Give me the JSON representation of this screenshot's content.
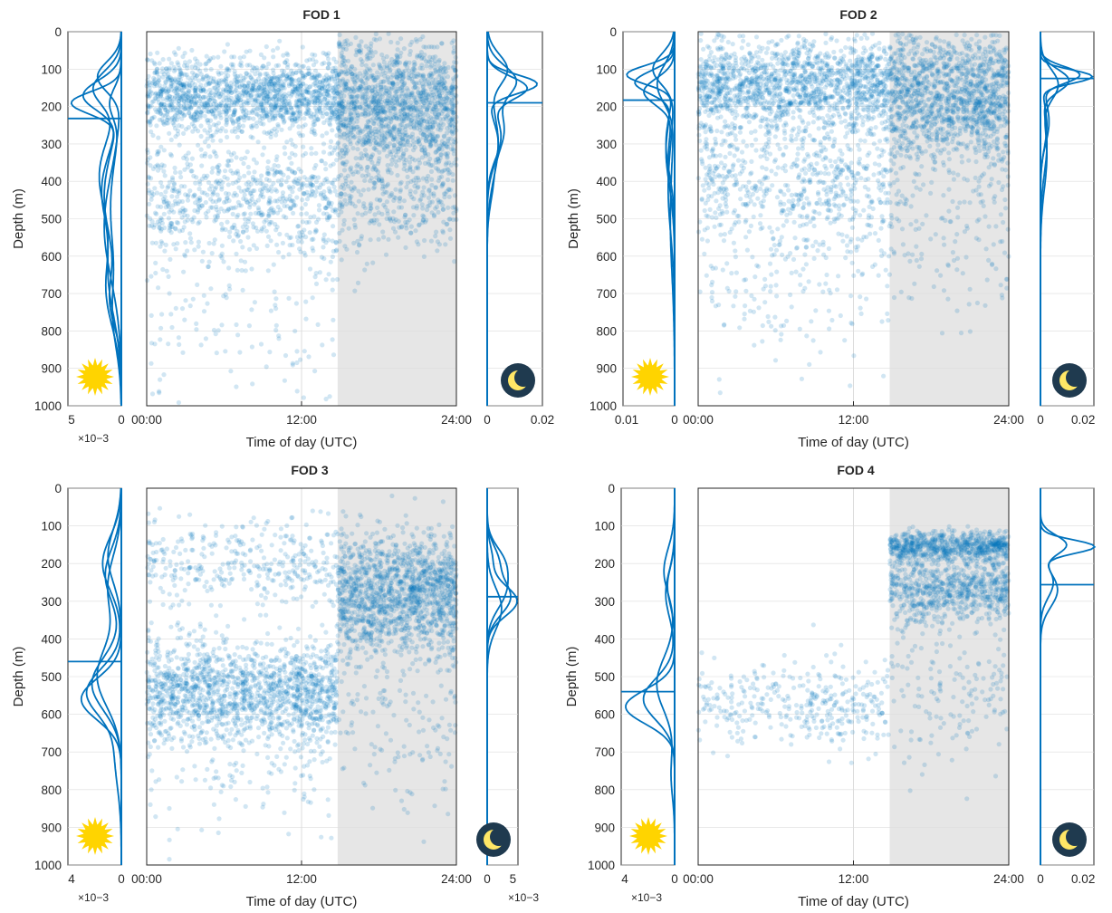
{
  "figure": {
    "colors": {
      "data": "#0072BD",
      "night_shade": "#e6e6e6",
      "grid": "#dcdcdc",
      "sun": "#FFD400",
      "moon_bg": "#1f3a4f",
      "moon": "#FFE766"
    },
    "icons": {
      "day": "sun-icon",
      "night": "moon-icon"
    }
  },
  "chart_data": [
    {
      "type": "scatter",
      "title": "FOD 1",
      "xlabel": "Time of day (UTC)",
      "ylabel": "Depth (m)",
      "xlim": [
        0,
        24
      ],
      "ylim": [
        1000,
        0
      ],
      "y_reversed": true,
      "xticks": [
        "00:00",
        "12:00",
        "24:00"
      ],
      "yticks": [
        "0",
        "100",
        "200",
        "300",
        "400",
        "500",
        "600",
        "700",
        "800",
        "900",
        "1000"
      ],
      "night_shading_start_h": 14.8,
      "scatter_bands": [
        {
          "period": "day",
          "depth_center": 170,
          "depth_spread": 50,
          "density": "very high"
        },
        {
          "period": "day",
          "depth_center": 440,
          "depth_spread": 80,
          "density": "high"
        },
        {
          "period": "day",
          "depth_center": 720,
          "depth_spread": 140,
          "density": "low"
        },
        {
          "period": "night",
          "depth_center": 200,
          "depth_spread": 90,
          "density": "very high"
        },
        {
          "period": "night",
          "depth_center": 430,
          "depth_spread": 90,
          "density": "medium"
        }
      ],
      "day_profile": {
        "xlim": [
          5,
          0
        ],
        "xticks": [
          "5",
          "0"
        ],
        "multiplier": "×10−3",
        "mean_depth": 232
      },
      "night_profile": {
        "xlim": [
          0,
          0.02
        ],
        "xticks": [
          "0",
          "0.02"
        ],
        "multiplier": "",
        "mean_depth": 190
      }
    },
    {
      "type": "scatter",
      "title": "FOD 2",
      "xlabel": "Time of day (UTC)",
      "ylabel": "Depth (m)",
      "xlim": [
        0,
        24
      ],
      "ylim": [
        1000,
        0
      ],
      "y_reversed": true,
      "xticks": [
        "00:00",
        "12:00",
        "24:00"
      ],
      "yticks": [
        "0",
        "100",
        "200",
        "300",
        "400",
        "500",
        "600",
        "700",
        "800",
        "900",
        "1000"
      ],
      "night_shading_start_h": 14.8,
      "scatter_bands": [
        {
          "period": "day",
          "depth_center": 140,
          "depth_spread": 60,
          "density": "very high"
        },
        {
          "period": "day",
          "depth_center": 380,
          "depth_spread": 110,
          "density": "high"
        },
        {
          "period": "day",
          "depth_center": 680,
          "depth_spread": 140,
          "density": "low"
        },
        {
          "period": "night",
          "depth_center": 170,
          "depth_spread": 90,
          "density": "very high"
        },
        {
          "period": "night",
          "depth_center": 520,
          "depth_spread": 150,
          "density": "low"
        }
      ],
      "day_profile": {
        "xlim": [
          0.012,
          0
        ],
        "xticks": [
          "0.01",
          "0"
        ],
        "multiplier": "",
        "mean_depth": 183
      },
      "night_profile": {
        "xlim": [
          0,
          0.025
        ],
        "xticks": [
          "0",
          "0.02"
        ],
        "multiplier": "",
        "mean_depth": 125
      }
    },
    {
      "type": "scatter",
      "title": "FOD 3",
      "xlabel": "Time of day (UTC)",
      "ylabel": "Depth (m)",
      "xlim": [
        0,
        24
      ],
      "ylim": [
        1000,
        0
      ],
      "y_reversed": true,
      "xticks": [
        "00:00",
        "12:00",
        "24:00"
      ],
      "yticks": [
        "0",
        "100",
        "200",
        "300",
        "400",
        "500",
        "600",
        "700",
        "800",
        "900",
        "1000"
      ],
      "night_shading_start_h": 14.8,
      "scatter_bands": [
        {
          "period": "day",
          "depth_center": 200,
          "depth_spread": 60,
          "density": "medium"
        },
        {
          "period": "day",
          "depth_center": 540,
          "depth_spread": 70,
          "density": "very high"
        },
        {
          "period": "day",
          "depth_center": 700,
          "depth_spread": 110,
          "density": "low"
        },
        {
          "period": "night",
          "depth_center": 280,
          "depth_spread": 80,
          "density": "very high"
        },
        {
          "period": "night",
          "depth_center": 580,
          "depth_spread": 160,
          "density": "low"
        }
      ],
      "day_profile": {
        "xlim": [
          4,
          0
        ],
        "xticks": [
          "4",
          "0"
        ],
        "multiplier": "×10−3",
        "mean_depth": 460
      },
      "night_profile": {
        "xlim": [
          0,
          6
        ],
        "xticks": [
          "0",
          "5"
        ],
        "multiplier": "×10−3",
        "mean_depth": 288
      }
    },
    {
      "type": "scatter",
      "title": "FOD 4",
      "xlabel": "Time of day (UTC)",
      "ylabel": "Depth (m)",
      "xlim": [
        0,
        24
      ],
      "ylim": [
        1000,
        0
      ],
      "y_reversed": true,
      "xticks": [
        "00:00",
        "12:00",
        "24:00"
      ],
      "yticks": [
        "0",
        "100",
        "200",
        "300",
        "400",
        "500",
        "600",
        "700",
        "800",
        "900",
        "1000"
      ],
      "night_shading_start_h": 14.8,
      "scatter_bands": [
        {
          "period": "day",
          "depth_center": 580,
          "depth_spread": 60,
          "density": "medium"
        },
        {
          "period": "night",
          "depth_center": 155,
          "depth_spread": 20,
          "density": "high"
        },
        {
          "period": "night",
          "depth_center": 270,
          "depth_spread": 45,
          "density": "high"
        },
        {
          "period": "night",
          "depth_center": 520,
          "depth_spread": 110,
          "density": "low"
        }
      ],
      "day_profile": {
        "xlim": [
          6,
          0
        ],
        "xticks": [
          "4",
          "0"
        ],
        "multiplier": "×10−3",
        "mean_depth": 540
      },
      "night_profile": {
        "xlim": [
          0,
          0.025
        ],
        "xticks": [
          "0",
          "0.02"
        ],
        "multiplier": "",
        "mean_depth": 256
      }
    }
  ]
}
